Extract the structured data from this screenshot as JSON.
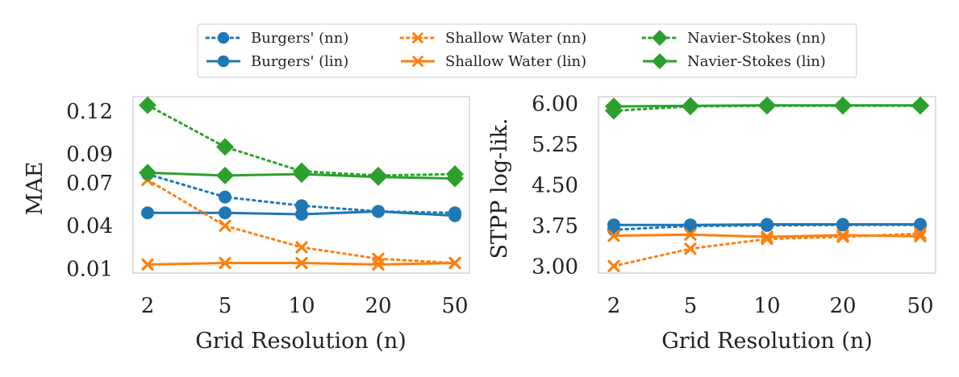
{
  "chart_data": [
    {
      "type": "line",
      "x": [
        "2",
        "5",
        "10",
        "20",
        "50"
      ],
      "xlabel": "Grid Resolution (n)",
      "ylabel": "MAE",
      "yticks": [
        "0.12",
        "0.09",
        "0.07",
        "0.04",
        "0.01"
      ],
      "ylim": [
        0.007,
        0.13
      ],
      "series": [
        {
          "name": "Burgers' (nn)",
          "values": [
            0.076,
            0.06,
            0.054,
            0.05,
            0.049
          ]
        },
        {
          "name": "Burgers' (lin)",
          "values": [
            0.049,
            0.049,
            0.048,
            0.05,
            0.047
          ]
        },
        {
          "name": "Shallow Water (nn)",
          "values": [
            0.072,
            0.04,
            0.025,
            0.017,
            0.014
          ]
        },
        {
          "name": "Shallow Water (lin)",
          "values": [
            0.013,
            0.014,
            0.014,
            0.013,
            0.014
          ]
        },
        {
          "name": "Navier-Stokes (nn)",
          "values": [
            0.124,
            0.095,
            0.078,
            0.075,
            0.076
          ]
        },
        {
          "name": "Navier-Stokes (lin)",
          "values": [
            0.077,
            0.075,
            0.076,
            0.074,
            0.073
          ]
        }
      ]
    },
    {
      "type": "line",
      "x": [
        "2",
        "5",
        "10",
        "20",
        "50"
      ],
      "xlabel": "Grid Resolution (n)",
      "ylabel": "STPP log-lik.",
      "yticks": [
        "6.00",
        "5.25",
        "4.50",
        "3.75",
        "3.00"
      ],
      "ylim": [
        2.87,
        6.13
      ],
      "series": [
        {
          "name": "Burgers' (nn)",
          "values": [
            3.67,
            3.74,
            3.75,
            3.76,
            3.76
          ]
        },
        {
          "name": "Burgers' (lin)",
          "values": [
            3.76,
            3.76,
            3.77,
            3.77,
            3.77
          ]
        },
        {
          "name": "Shallow Water (nn)",
          "values": [
            3.0,
            3.32,
            3.5,
            3.54,
            3.6
          ]
        },
        {
          "name": "Shallow Water (lin)",
          "values": [
            3.56,
            3.58,
            3.54,
            3.57,
            3.55
          ]
        },
        {
          "name": "Navier-Stokes (nn)",
          "values": [
            5.87,
            5.95,
            5.96,
            5.96,
            5.96
          ]
        },
        {
          "name": "Navier-Stokes (lin)",
          "values": [
            5.95,
            5.96,
            5.97,
            5.97,
            5.97
          ]
        }
      ]
    }
  ],
  "legend": {
    "entries": [
      "Burgers' (nn)",
      "Shallow Water (nn)",
      "Navier-Stokes (nn)",
      "Burgers' (lin)",
      "Shallow Water (lin)",
      "Navier-Stokes (lin)"
    ]
  },
  "colors": {
    "blue": "#1f77b4",
    "orange": "#ff7f0e",
    "green": "#2ca02c"
  }
}
